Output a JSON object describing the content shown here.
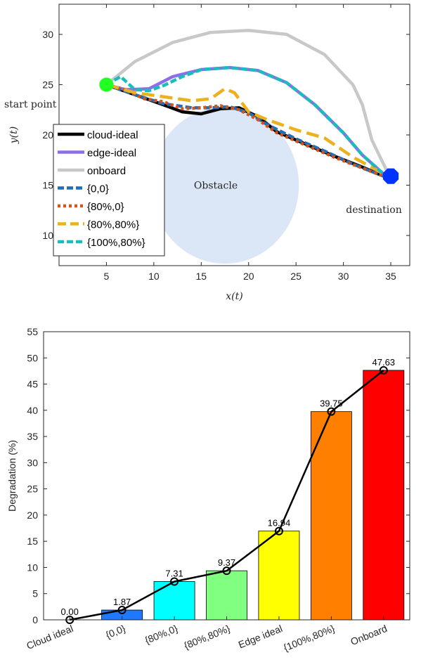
{
  "chart_data": [
    {
      "type": "line",
      "xlabel": "x(t)",
      "ylabel": "y(t)",
      "xlim": [
        0,
        37
      ],
      "ylim": [
        7,
        33
      ],
      "xticks": [
        5,
        10,
        15,
        20,
        25,
        30,
        35
      ],
      "yticks": [
        10,
        15,
        20,
        25,
        30
      ],
      "grid": false,
      "legend_position": "bottom-left",
      "annotations": {
        "start": "start point",
        "destination": "destination",
        "obstacle": "Obstacle"
      },
      "start_point": [
        5,
        25
      ],
      "destination_point": [
        35,
        15.9
      ],
      "obstacle": {
        "center": [
          17.5,
          15
        ],
        "radius": 7.8,
        "color": "#dbe7f7"
      },
      "series": [
        {
          "name": "cloud-ideal",
          "color": "#000000",
          "style": "solid",
          "x": [
            5,
            8,
            11,
            13,
            15,
            17,
            19,
            21,
            23,
            26,
            29,
            32,
            35
          ],
          "y": [
            25,
            24,
            23,
            22.3,
            22.1,
            22.6,
            22.7,
            21.8,
            20.3,
            19.1,
            17.9,
            16.8,
            15.6
          ]
        },
        {
          "name": "edge-ideal",
          "color": "#8c6fe6",
          "style": "solid",
          "x": [
            5,
            7,
            9.5,
            12,
            15,
            18,
            21,
            24,
            27,
            30,
            32,
            34.5
          ],
          "y": [
            25,
            24.5,
            24.6,
            25.8,
            26.5,
            26.7,
            26.4,
            25.2,
            23.0,
            20.2,
            18.0,
            15.9
          ]
        },
        {
          "name": "onboard",
          "color": "#c8c8c8",
          "style": "solid",
          "x": [
            5,
            8,
            12,
            16,
            20,
            24,
            28,
            31,
            32,
            33,
            34.8
          ],
          "y": [
            25,
            27.3,
            29.2,
            30.2,
            30.4,
            30.0,
            28.0,
            25.0,
            23.0,
            19.5,
            16.0
          ]
        },
        {
          "name": "{0,0}",
          "color": "#1f6fb8",
          "style": "dash",
          "x": [
            5,
            8,
            11,
            14,
            16,
            18,
            20,
            22,
            25,
            28,
            31,
            34.5
          ],
          "y": [
            25,
            24.0,
            23.1,
            22.7,
            22.7,
            22.8,
            22.2,
            21.0,
            19.6,
            18.4,
            17.1,
            15.8
          ]
        },
        {
          "name": "{80%,0}",
          "color": "#d95319",
          "style": "dot",
          "x": [
            5,
            7,
            9,
            11,
            13,
            15,
            17,
            19,
            21,
            23,
            26,
            29,
            32,
            34.5
          ],
          "y": [
            25,
            24.5,
            23.6,
            23.3,
            22.6,
            22.7,
            22.9,
            22.5,
            21.5,
            20.2,
            19.0,
            17.8,
            16.7,
            15.8
          ]
        },
        {
          "name": "{80%,80%}",
          "color": "#edb120",
          "style": "dash-long",
          "x": [
            5,
            8,
            11,
            14,
            16,
            17.5,
            18.5,
            20,
            22,
            25,
            28,
            31,
            34.5
          ],
          "y": [
            25,
            24.2,
            23.8,
            23.4,
            23.6,
            24.6,
            24.2,
            22.3,
            21.5,
            20.5,
            19.7,
            17.8,
            16.0
          ]
        },
        {
          "name": "{100%,80%}",
          "color": "#17bebb",
          "style": "dash",
          "x": [
            5,
            6.5,
            8,
            9.5,
            11,
            13,
            15,
            18,
            21,
            24,
            27,
            30,
            32,
            34.5
          ],
          "y": [
            25,
            25.8,
            24.5,
            24.4,
            24.9,
            25.8,
            26.5,
            26.7,
            26.4,
            25.2,
            23.0,
            20.2,
            18.0,
            15.9
          ]
        }
      ]
    },
    {
      "type": "bar",
      "ylabel": "Degradation (%)",
      "ylim": [
        0,
        55
      ],
      "yticks": [
        0,
        5,
        10,
        15,
        20,
        25,
        30,
        35,
        40,
        45,
        50,
        55
      ],
      "grid": false,
      "categories": [
        "Cloud ideal",
        "{0,0}",
        "{80%,0}",
        "{80%,80%}",
        "Edge ideal",
        "{100%,80%}",
        "Onboard"
      ],
      "values": [
        0.0,
        1.87,
        7.31,
        9.37,
        16.94,
        39.75,
        47.63
      ],
      "value_labels": [
        "0.00",
        "1.87",
        "7.31",
        "9.37",
        "16.94",
        "39.75",
        "47.63"
      ],
      "colors": [
        "#0a2dff",
        "#1f78ff",
        "#00ffff",
        "#80ff80",
        "#ffff00",
        "#ff8000",
        "#ff0000"
      ]
    }
  ]
}
